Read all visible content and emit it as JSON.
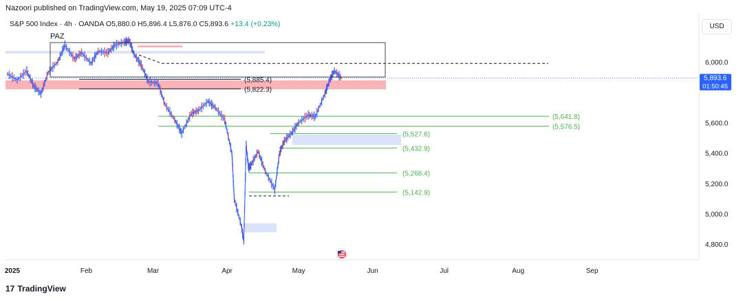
{
  "publisher": "Nazoori published on TradingView.com, May 19, 2025 07:09 UTC-4",
  "legend": {
    "symbol": "S&P 500 Index · 4h · OANDA",
    "open_label": "O",
    "open": "5,880.0",
    "high_label": "H",
    "high": "5,896.4",
    "low_label": "L",
    "low": "5,876.0",
    "close_label": "C",
    "close": "5,893.6",
    "change": "+13.4 (+0.23%)"
  },
  "currency_button": "USD",
  "footer": {
    "logo_mark": "17",
    "logo_text": "TradingView"
  },
  "colors": {
    "up": "#089981",
    "down": "#f23645",
    "candle_blue": "#2962ff",
    "level_green": "#4caf50",
    "zone_red": "#f7a1a8",
    "zone_blue": "#d1dcf7",
    "price_tag": "#2962ff",
    "grid": "#f0f3fa"
  },
  "icons": {
    "flag": "us-flag-icon"
  },
  "chart_data": {
    "type": "line",
    "title": "",
    "ylim": [
      4750,
      6150
    ],
    "y_ticks": [
      "6,000.0",
      "5,600.0",
      "5,400.0",
      "5,200.0",
      "5,000.0",
      "4,800.0"
    ],
    "y_tick_values": [
      6000,
      5600,
      5400,
      5200,
      5000,
      4800
    ],
    "x_ticks": [
      "2025",
      "Feb",
      "Mar",
      "Apr",
      "May",
      "Jun",
      "Jul",
      "Aug",
      "Sep"
    ],
    "x_tick_dates": [
      "2025-01-01",
      "2025-02-01",
      "2025-03-01",
      "2025-04-01",
      "2025-05-01",
      "2025-06-01",
      "2025-07-01",
      "2025-08-01",
      "2025-09-01"
    ],
    "x_range": [
      "2024-12-30",
      "2025-09-30"
    ],
    "current_price": {
      "value": 5893.6,
      "label": "5,893.6",
      "countdown": "01:50:45"
    },
    "series": [
      {
        "x": [
          "2024-12-30",
          "2025-01-03",
          "2025-01-07",
          "2025-01-10",
          "2025-01-13",
          "2025-01-16",
          "2025-01-20",
          "2025-01-23",
          "2025-01-27",
          "2025-01-30",
          "2025-02-03",
          "2025-02-06",
          "2025-02-10",
          "2025-02-13",
          "2025-02-17",
          "2025-02-19",
          "2025-02-21",
          "2025-02-24",
          "2025-02-27",
          "2025-03-03",
          "2025-03-06",
          "2025-03-10",
          "2025-03-13",
          "2025-03-17",
          "2025-03-20",
          "2025-03-24",
          "2025-03-27",
          "2025-03-31",
          "2025-04-03",
          "2025-04-04",
          "2025-04-07",
          "2025-04-08",
          "2025-04-09",
          "2025-04-10",
          "2025-04-11",
          "2025-04-14",
          "2025-04-17",
          "2025-04-21",
          "2025-04-23",
          "2025-04-25",
          "2025-04-28",
          "2025-05-01",
          "2025-05-05",
          "2025-05-08",
          "2025-05-12",
          "2025-05-14",
          "2025-05-16",
          "2025-05-19"
        ],
        "values": [
          5920,
          5880,
          5940,
          5840,
          5790,
          5930,
          6000,
          6110,
          6020,
          6060,
          5990,
          6070,
          6060,
          6110,
          6130,
          6140,
          6050,
          5980,
          5870,
          5860,
          5720,
          5620,
          5530,
          5660,
          5680,
          5740,
          5700,
          5620,
          5400,
          5100,
          4920,
          4820,
          5450,
          5300,
          5320,
          5410,
          5280,
          5160,
          5400,
          5480,
          5530,
          5600,
          5650,
          5640,
          5790,
          5880,
          5940,
          5893
        ]
      }
    ],
    "levels": [
      {
        "label": "(5,885.4)",
        "value": 5885.4
      },
      {
        "label": "(5,822.3)",
        "value": 5822.3
      },
      {
        "label": "(5,641.8)",
        "value": 5641.8
      },
      {
        "label": "(5,576.5)",
        "value": 5576.5
      },
      {
        "label": "(5,527.6)",
        "value": 5527.6
      },
      {
        "label": "(5,432.9)",
        "value": 5432.9
      },
      {
        "label": "(5,268.4)",
        "value": 5268.4
      },
      {
        "label": "(5,142.9)",
        "value": 5142.9
      }
    ],
    "box_label": "PAZ",
    "dashed_level": 5990
  }
}
